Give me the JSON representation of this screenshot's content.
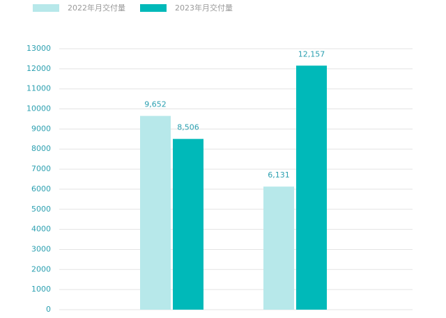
{
  "chart_data": {
    "type": "bar",
    "categories": [
      null,
      null
    ],
    "series": [
      {
        "name": "2022年月交付量",
        "color": "#b7e8ea",
        "values": [
          9652,
          6131
        ],
        "value_labels": [
          "9,652",
          "6,131"
        ]
      },
      {
        "name": "2023年月交付量",
        "color": "#00b9b9",
        "values": [
          8506,
          12157
        ],
        "value_labels": [
          "8,506",
          "12,157"
        ]
      }
    ],
    "ylim": [
      0,
      13000
    ],
    "yticks": [
      0,
      1000,
      2000,
      3000,
      4000,
      5000,
      6000,
      7000,
      8000,
      9000,
      10000,
      11000,
      12000,
      13000
    ],
    "grid": true,
    "legend": "top-left"
  }
}
